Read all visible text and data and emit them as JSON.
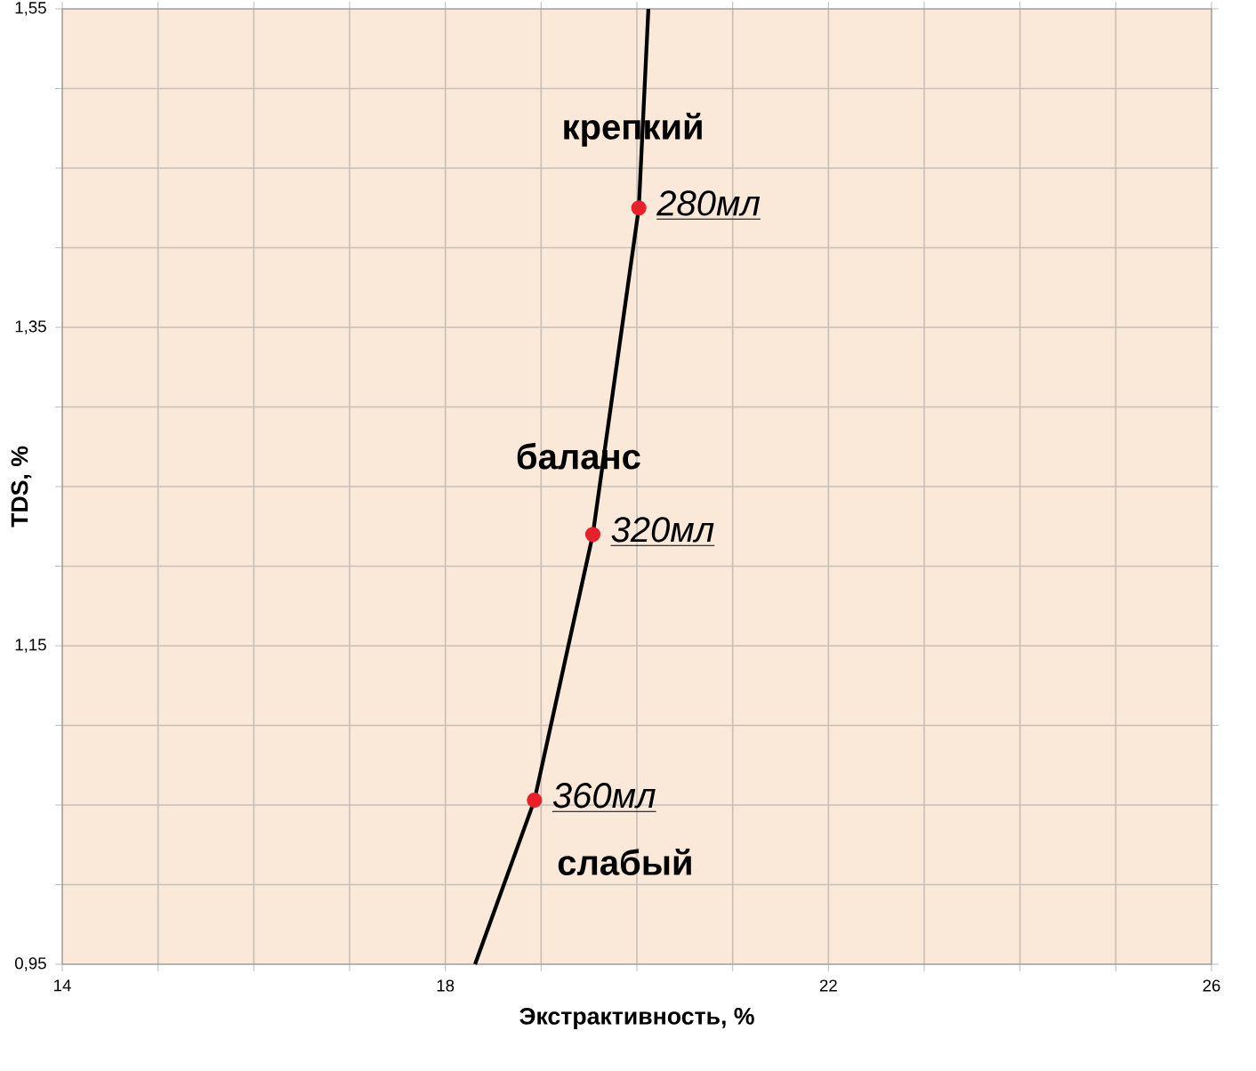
{
  "chart_data": {
    "type": "line",
    "xlabel": "Экстрактивность, %",
    "ylabel": "TDS, %",
    "xlim": [
      14,
      26
    ],
    "ylim": [
      0.95,
      1.55
    ],
    "xticks": [
      14,
      {
        "value": 15,
        "label": null
      },
      {
        "value": 16,
        "label": null
      },
      {
        "value": 17,
        "label": null
      },
      18,
      {
        "value": 19,
        "label": null
      },
      {
        "value": 20,
        "label": null
      },
      {
        "value": 21,
        "label": null
      },
      22,
      {
        "value": 23,
        "label": null
      },
      {
        "value": 24,
        "label": null
      },
      {
        "value": 25,
        "label": null
      },
      26
    ],
    "yticks": [
      {
        "value": 0.95,
        "label": "0,95"
      },
      {
        "value": 1.0,
        "label": null
      },
      {
        "value": 1.05,
        "label": null
      },
      {
        "value": 1.1,
        "label": null
      },
      {
        "value": 1.15,
        "label": "1,15"
      },
      {
        "value": 1.2,
        "label": null
      },
      {
        "value": 1.25,
        "label": null
      },
      {
        "value": 1.3,
        "label": null
      },
      {
        "value": 1.35,
        "label": "1,35"
      },
      {
        "value": 1.4,
        "label": null
      },
      {
        "value": 1.45,
        "label": null
      },
      {
        "value": 1.5,
        "label": null
      },
      {
        "value": 1.55,
        "label": "1,55"
      }
    ],
    "grid": true,
    "series": [
      {
        "color": "#000000",
        "marker": "none",
        "x": [
          18.31,
          18.93,
          19.54,
          20.02,
          20.12
        ],
        "values": [
          0.95,
          1.053,
          1.22,
          1.425,
          1.55
        ]
      },
      {
        "type": "scatter",
        "color": "#e8202a",
        "marker": "circle",
        "x": [
          20.02,
          19.54,
          18.93
        ],
        "values": [
          1.425,
          1.22,
          1.053
        ]
      }
    ],
    "annotations": [
      {
        "text": "280мл",
        "x": 20.02,
        "y": 1.425
      },
      {
        "text": "320мл",
        "x": 19.54,
        "y": 1.22
      },
      {
        "text": "360мл",
        "x": 18.93,
        "y": 1.053
      },
      "крепкий",
      "баланс",
      "слабый"
    ]
  }
}
